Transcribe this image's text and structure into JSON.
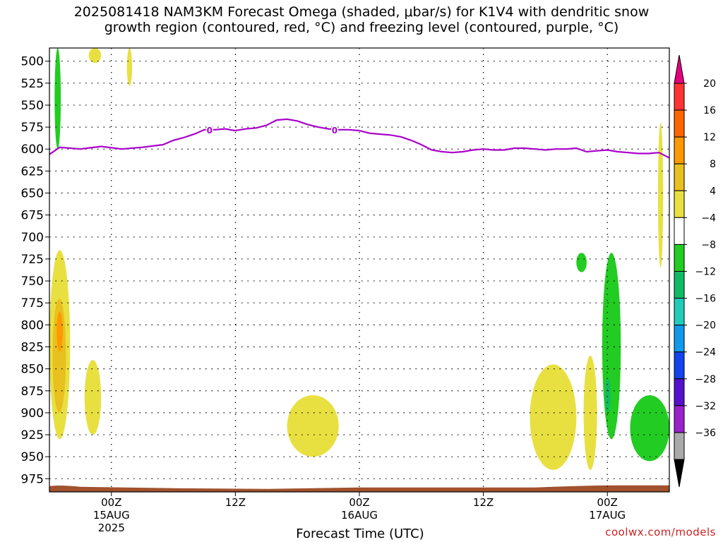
{
  "title_line1": "2025081418 NAM3KM Forecast Omega (shaded, μbar/s) for K1V4 with dendritic snow",
  "title_line2": "growth region (contoured, red, °C) and freezing level (contoured, purple, °C)",
  "credit": "coolwx.com/models",
  "chart_data": {
    "type": "heatmap",
    "title": "2025081418 NAM3KM Forecast Omega (shaded, μbar/s) for K1V4 with dendritic snow growth region (contoured, red, °C) and freezing level (contoured, purple, °C)",
    "xlabel": "Forecast Time (UTC)",
    "ylabel": "",
    "xlim_hours_from_2025081418": [
      0,
      60
    ],
    "ylim_hPa": [
      990,
      485
    ],
    "y_ticks": [
      500,
      525,
      550,
      575,
      600,
      625,
      650,
      675,
      700,
      725,
      750,
      775,
      800,
      825,
      850,
      875,
      900,
      925,
      950,
      975
    ],
    "x_ticks": [
      {
        "hour": 6,
        "label": "00Z",
        "sublabel": "15AUG",
        "year": "2025"
      },
      {
        "hour": 18,
        "label": "12Z",
        "sublabel": "",
        "year": ""
      },
      {
        "hour": 30,
        "label": "00Z",
        "sublabel": "16AUG",
        "year": ""
      },
      {
        "hour": 42,
        "label": "12Z",
        "sublabel": "",
        "year": ""
      },
      {
        "hour": 54,
        "label": "00Z",
        "sublabel": "17AUG",
        "year": ""
      }
    ],
    "colorbar": {
      "labels": [
        "20",
        "16",
        "12",
        "8",
        "4",
        "-4",
        "-8",
        "-12",
        "-16",
        "-20",
        "-24",
        "-28",
        "-32",
        "-36"
      ],
      "colors": [
        "#e6007e",
        "#ff3333",
        "#ff6600",
        "#ff9900",
        "#e8c020",
        "#e8e040",
        "#ffffff",
        "#22cc22",
        "#11bb66",
        "#22ccbb",
        "#1199ee",
        "#1144ee",
        "#5511cc",
        "#9922cc",
        "#aaaaaa",
        "#000000"
      ]
    },
    "freezing_level": {
      "label": "0",
      "color": "#aa00cc",
      "points": [
        [
          0,
          606
        ],
        [
          1,
          598
        ],
        [
          3,
          600
        ],
        [
          5,
          597
        ],
        [
          7,
          600
        ],
        [
          9,
          598
        ],
        [
          11,
          595
        ],
        [
          12,
          590
        ],
        [
          13,
          587
        ],
        [
          14,
          583
        ],
        [
          15,
          578
        ],
        [
          16,
          578
        ],
        [
          17,
          577
        ],
        [
          18,
          579
        ],
        [
          19,
          577
        ],
        [
          20,
          576
        ],
        [
          21,
          573
        ],
        [
          22,
          567
        ],
        [
          23,
          566
        ],
        [
          24,
          568
        ],
        [
          25,
          572
        ],
        [
          26,
          575
        ],
        [
          27,
          577
        ],
        [
          28,
          578
        ],
        [
          29,
          578
        ],
        [
          30,
          579
        ],
        [
          31,
          582
        ],
        [
          32,
          583
        ],
        [
          33,
          584
        ],
        [
          34,
          586
        ],
        [
          35,
          590
        ],
        [
          36,
          595
        ],
        [
          37,
          601
        ],
        [
          38,
          603
        ],
        [
          39,
          604
        ],
        [
          40,
          603
        ],
        [
          41,
          601
        ],
        [
          42,
          600
        ],
        [
          43,
          601
        ],
        [
          44,
          601
        ],
        [
          45,
          599
        ],
        [
          46,
          599
        ],
        [
          47,
          600
        ],
        [
          48,
          601
        ],
        [
          49,
          600
        ],
        [
          50,
          600
        ],
        [
          51,
          599
        ],
        [
          52,
          603
        ],
        [
          53,
          602
        ],
        [
          54,
          601
        ],
        [
          55,
          603
        ],
        [
          56,
          604
        ],
        [
          57,
          605
        ],
        [
          58,
          605
        ],
        [
          59,
          604
        ],
        [
          60,
          610
        ]
      ]
    },
    "omega_areas": [
      {
        "value_range": "4 to 8",
        "color": "#e8e040",
        "time_range_h": [
          0,
          2
        ],
        "pressure_range_hPa": [
          715,
          930
        ]
      },
      {
        "value_range": "8 to 12",
        "color": "#e8c020",
        "time_range_h": [
          0.3,
          1.6
        ],
        "pressure_range_hPa": [
          770,
          900
        ]
      },
      {
        "value_range": "12 to 16",
        "color": "#ff9900",
        "time_range_h": [
          0.7,
          1.3
        ],
        "pressure_range_hPa": [
          785,
          830
        ]
      },
      {
        "value_range": "4 to 8",
        "color": "#e8e040",
        "time_range_h": [
          3.4,
          5
        ],
        "pressure_range_hPa": [
          840,
          925
        ]
      },
      {
        "value_range": "4 to 8",
        "color": "#e8e040",
        "time_range_h": [
          23,
          28
        ],
        "pressure_range_hPa": [
          880,
          950
        ]
      },
      {
        "value_range": "4 to 8",
        "color": "#e8e040",
        "time_range_h": [
          46.5,
          51
        ],
        "pressure_range_hPa": [
          845,
          965
        ]
      },
      {
        "value_range": "4 to 8",
        "color": "#e8e040",
        "time_range_h": [
          51.7,
          53
        ],
        "pressure_range_hPa": [
          835,
          965
        ]
      },
      {
        "value_range": "4 to 8",
        "color": "#e8e040",
        "time_range_h": [
          58.9,
          59.4
        ],
        "pressure_range_hPa": [
          570,
          735
        ]
      },
      {
        "value_range": "4 to 8",
        "color": "#e8e040",
        "time_range_h": [
          3.8,
          5
        ],
        "pressure_range_hPa": [
          485,
          502
        ]
      },
      {
        "value_range": "4 to 8",
        "color": "#e8e040",
        "time_range_h": [
          7.5,
          8
        ],
        "pressure_range_hPa": [
          485,
          528
        ]
      },
      {
        "value_range": "-4 to -8",
        "color": "#22cc22",
        "time_range_h": [
          0.5,
          1.1
        ],
        "pressure_range_hPa": [
          485,
          600
        ]
      },
      {
        "value_range": "-4 to -8",
        "color": "#22cc22",
        "time_range_h": [
          51,
          52
        ],
        "pressure_range_hPa": [
          718,
          740
        ]
      },
      {
        "value_range": "-4 to -8",
        "color": "#22cc22",
        "time_range_h": [
          53.5,
          55.3
        ],
        "pressure_range_hPa": [
          718,
          930
        ]
      },
      {
        "value_range": "-8 to -12",
        "color": "#11bb66",
        "time_range_h": [
          53.8,
          54.3
        ],
        "pressure_range_hPa": [
          860,
          900
        ]
      },
      {
        "value_range": "-4 to -8",
        "color": "#22cc22",
        "time_range_h": [
          56.2,
          60
        ],
        "pressure_range_hPa": [
          880,
          955
        ]
      }
    ],
    "terrain": {
      "color": "#a0522d",
      "surface_pressure_hPa_range": [
        985,
        990
      ]
    }
  }
}
